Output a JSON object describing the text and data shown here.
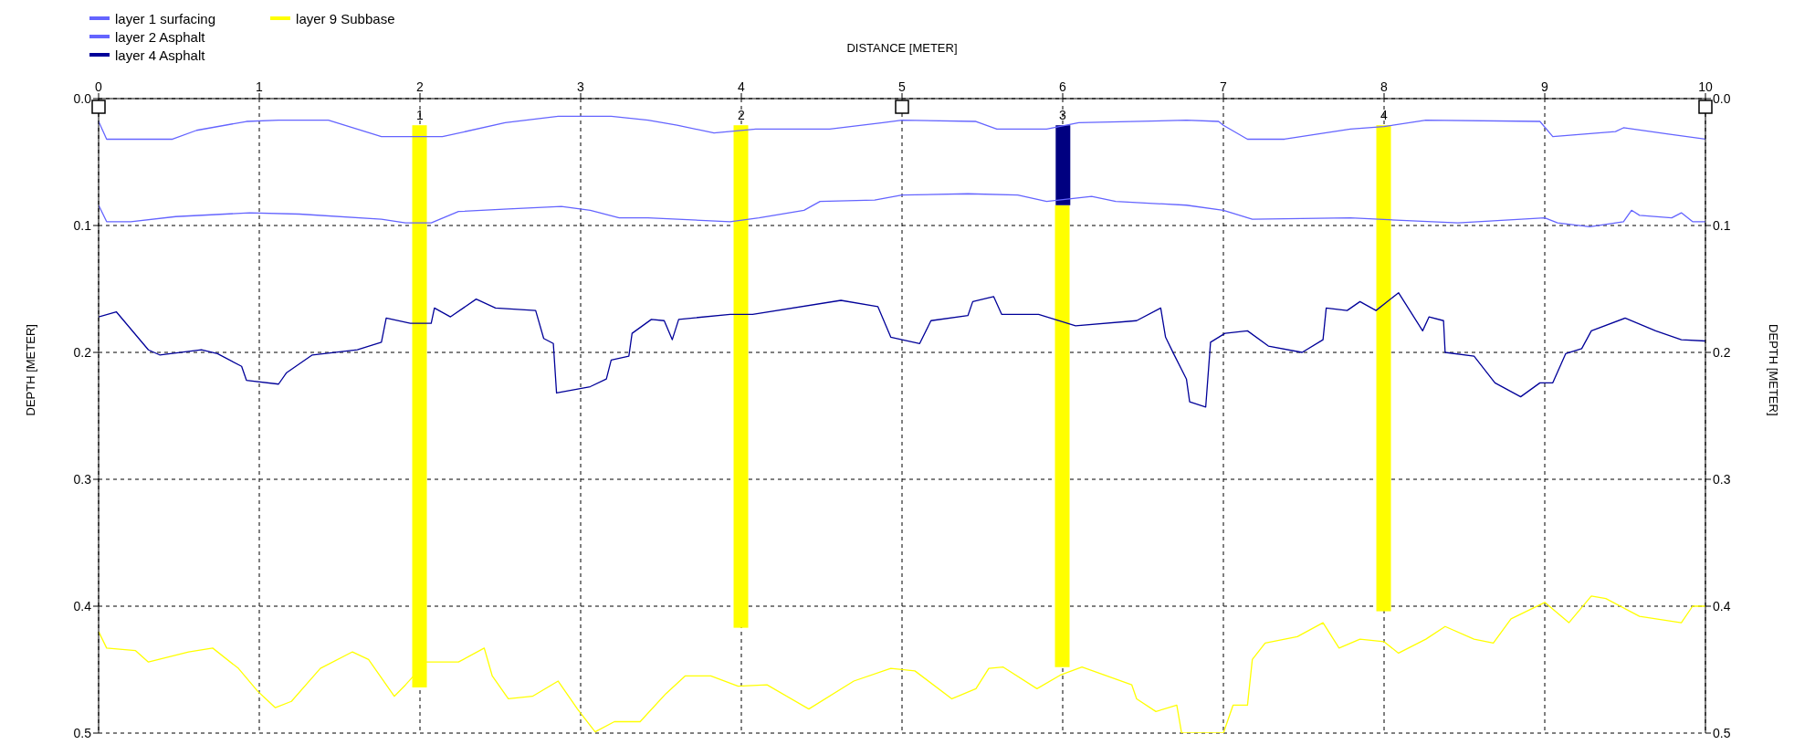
{
  "chart_data": {
    "type": "line",
    "xlabel": "DISTANCE [METER]",
    "ylabel": "DEPTH [METER]",
    "y2label": "DEPTH [METER]",
    "xlim": [
      0,
      10
    ],
    "xticks": [
      0,
      1,
      2,
      3,
      4,
      5,
      6,
      7,
      8,
      9,
      10
    ],
    "ylim": [
      0.5,
      0
    ],
    "yticks": [
      {
        "value": 0,
        "label": "0.0"
      },
      0.1,
      0.2,
      0.3,
      0.4,
      0.5
    ],
    "y2lim": [
      0.5,
      0
    ],
    "y2ticks": [
      {
        "value": 0,
        "label": "0.0"
      },
      0.1,
      0.2,
      0.3,
      0.4,
      0.5
    ],
    "grid": true,
    "legend": "top left",
    "line_style": "solid",
    "annotations": [
      {
        "text": "1",
        "x": 2,
        "y": 0.021
      },
      {
        "text": "2",
        "x": 4,
        "y": 0.021
      },
      {
        "text": "3",
        "x": 6,
        "y": 0.021
      },
      {
        "text": "4",
        "x": 8,
        "y": 0.021
      }
    ],
    "series": [
      {
        "name": "layer 1 surfacing",
        "color": "#6464ff",
        "x": [
          0,
          0.05,
          0.46,
          0.61,
          0.92,
          1.12,
          1.43,
          1.76,
          2.14,
          2.53,
          2.86,
          3.19,
          3.42,
          3.6,
          3.83,
          4.09,
          4.55,
          4.88,
          5.0,
          5.46,
          5.59,
          5.9,
          6.1,
          6.77,
          6.97,
          7.0,
          7.15,
          7.38,
          7.79,
          8.0,
          8.26,
          8.97,
          9.05,
          9.44,
          9.49,
          9.77,
          10
        ],
        "values": [
          0.018,
          0.032,
          0.032,
          0.025,
          0.018,
          0.017,
          0.017,
          0.03,
          0.03,
          0.019,
          0.014,
          0.014,
          0.017,
          0.021,
          0.027,
          0.024,
          0.024,
          0.019,
          0.017,
          0.018,
          0.024,
          0.024,
          0.019,
          0.017,
          0.018,
          0.021,
          0.032,
          0.032,
          0.024,
          0.022,
          0.017,
          0.018,
          0.03,
          0.026,
          0.023,
          0.028,
          0.032
        ]
      },
      {
        "name": "layer 2 Asphalt",
        "color": "#6464ff",
        "x": [
          0,
          0.05,
          0.2,
          0.48,
          0.94,
          1.25,
          1.76,
          1.91,
          2.07,
          2.24,
          2.55,
          2.88,
          3.06,
          3.24,
          3.42,
          3.93,
          4.11,
          4.39,
          4.49,
          4.83,
          5.0,
          5.41,
          5.72,
          5.9,
          6.18,
          6.33,
          6.77,
          7.0,
          7.18,
          7.79,
          8.46,
          9.0,
          9.08,
          9.28,
          9.49,
          9.54,
          9.59,
          9.79,
          9.85,
          9.92,
          10
        ],
        "values": [
          0.084,
          0.097,
          0.097,
          0.093,
          0.09,
          0.091,
          0.095,
          0.098,
          0.098,
          0.089,
          0.087,
          0.085,
          0.088,
          0.094,
          0.094,
          0.097,
          0.094,
          0.088,
          0.081,
          0.08,
          0.076,
          0.075,
          0.076,
          0.081,
          0.077,
          0.081,
          0.084,
          0.088,
          0.095,
          0.094,
          0.098,
          0.094,
          0.098,
          0.101,
          0.097,
          0.088,
          0.092,
          0.094,
          0.09,
          0.097,
          0.097
        ]
      },
      {
        "name": "layer 4 Asphalt",
        "color": "#000099",
        "x": [
          0,
          0.11,
          0.31,
          0.38,
          0.64,
          0.74,
          0.89,
          0.92,
          1.12,
          1.17,
          1.33,
          1.61,
          1.76,
          1.79,
          1.94,
          2.07,
          2.09,
          2.19,
          2.35,
          2.47,
          2.72,
          2.77,
          2.83,
          2.85,
          3.06,
          3.16,
          3.19,
          3.3,
          3.32,
          3.44,
          3.52,
          3.57,
          3.61,
          3.93,
          4.07,
          4.62,
          4.85,
          4.93,
          5.11,
          5.18,
          5.41,
          5.44,
          5.57,
          5.62,
          5.85,
          6.08,
          6.46,
          6.61,
          6.64,
          6.69,
          6.77,
          6.79,
          6.89,
          6.92,
          7.01,
          7.15,
          7.28,
          7.49,
          7.62,
          7.64,
          7.77,
          7.85,
          7.95,
          8.09,
          8.24,
          8.28,
          8.37,
          8.38,
          8.56,
          8.69,
          8.85,
          8.97,
          9.05,
          9.13,
          9.23,
          9.29,
          9.5,
          9.69,
          9.85,
          10
        ],
        "values": [
          0.172,
          0.168,
          0.198,
          0.202,
          0.198,
          0.201,
          0.211,
          0.222,
          0.225,
          0.216,
          0.202,
          0.198,
          0.192,
          0.173,
          0.177,
          0.177,
          0.165,
          0.172,
          0.158,
          0.165,
          0.167,
          0.189,
          0.193,
          0.232,
          0.227,
          0.221,
          0.206,
          0.203,
          0.185,
          0.174,
          0.175,
          0.19,
          0.174,
          0.17,
          0.17,
          0.159,
          0.164,
          0.188,
          0.193,
          0.175,
          0.171,
          0.16,
          0.156,
          0.17,
          0.17,
          0.179,
          0.175,
          0.165,
          0.188,
          0.201,
          0.221,
          0.239,
          0.243,
          0.192,
          0.185,
          0.183,
          0.195,
          0.2,
          0.19,
          0.165,
          0.167,
          0.16,
          0.167,
          0.153,
          0.183,
          0.172,
          0.175,
          0.2,
          0.203,
          0.224,
          0.235,
          0.224,
          0.224,
          0.201,
          0.197,
          0.183,
          0.173,
          0.183,
          0.19,
          0.191
        ]
      },
      {
        "name": "layer 9 Subbase",
        "color": "#ffff00",
        "x": [
          0,
          0.05,
          0.23,
          0.31,
          0.56,
          0.71,
          0.87,
          0.99,
          1.1,
          1.2,
          1.38,
          1.58,
          1.68,
          1.84,
          1.91,
          2.04,
          2.24,
          2.4,
          2.45,
          2.55,
          2.7,
          2.86,
          2.98,
          3.09,
          3.21,
          3.37,
          3.53,
          3.65,
          3.81,
          3.98,
          4.16,
          4.42,
          4.7,
          4.93,
          5.08,
          5.31,
          5.46,
          5.54,
          5.63,
          5.84,
          5.99,
          6.12,
          6.43,
          6.46,
          6.58,
          6.71,
          6.74,
          7.0,
          7.06,
          7.15,
          7.18,
          7.26,
          7.46,
          7.62,
          7.72,
          7.85,
          8.0,
          8.09,
          8.26,
          8.38,
          8.56,
          8.68,
          8.79,
          9.0,
          9.15,
          9.29,
          9.38,
          9.59,
          9.85,
          9.92,
          10
        ],
        "values": [
          0.42,
          0.433,
          0.435,
          0.444,
          0.436,
          0.433,
          0.449,
          0.467,
          0.48,
          0.475,
          0.449,
          0.436,
          0.442,
          0.471,
          0.462,
          0.444,
          0.444,
          0.433,
          0.455,
          0.473,
          0.471,
          0.459,
          0.481,
          0.499,
          0.491,
          0.491,
          0.469,
          0.455,
          0.455,
          0.463,
          0.462,
          0.481,
          0.459,
          0.449,
          0.451,
          0.473,
          0.465,
          0.449,
          0.448,
          0.465,
          0.454,
          0.448,
          0.462,
          0.473,
          0.483,
          0.478,
          0.5,
          0.5,
          0.478,
          0.478,
          0.442,
          0.429,
          0.424,
          0.413,
          0.433,
          0.426,
          0.428,
          0.437,
          0.426,
          0.416,
          0.426,
          0.429,
          0.41,
          0.397,
          0.413,
          0.392,
          0.394,
          0.408,
          0.413,
          0.4,
          0.4
        ]
      },
      {
        "type": "bar",
        "color": "#ffff00",
        "x": [
          2,
          4,
          6,
          8
        ],
        "base": [
          0.021,
          0.021,
          0.084,
          0.021
        ],
        "values": [
          0.443,
          0.396,
          0.364,
          0.383
        ]
      },
      {
        "type": "bar",
        "color": "#000080",
        "x": [
          6
        ],
        "base": [
          0.021
        ],
        "values": [
          0.063
        ]
      }
    ]
  }
}
